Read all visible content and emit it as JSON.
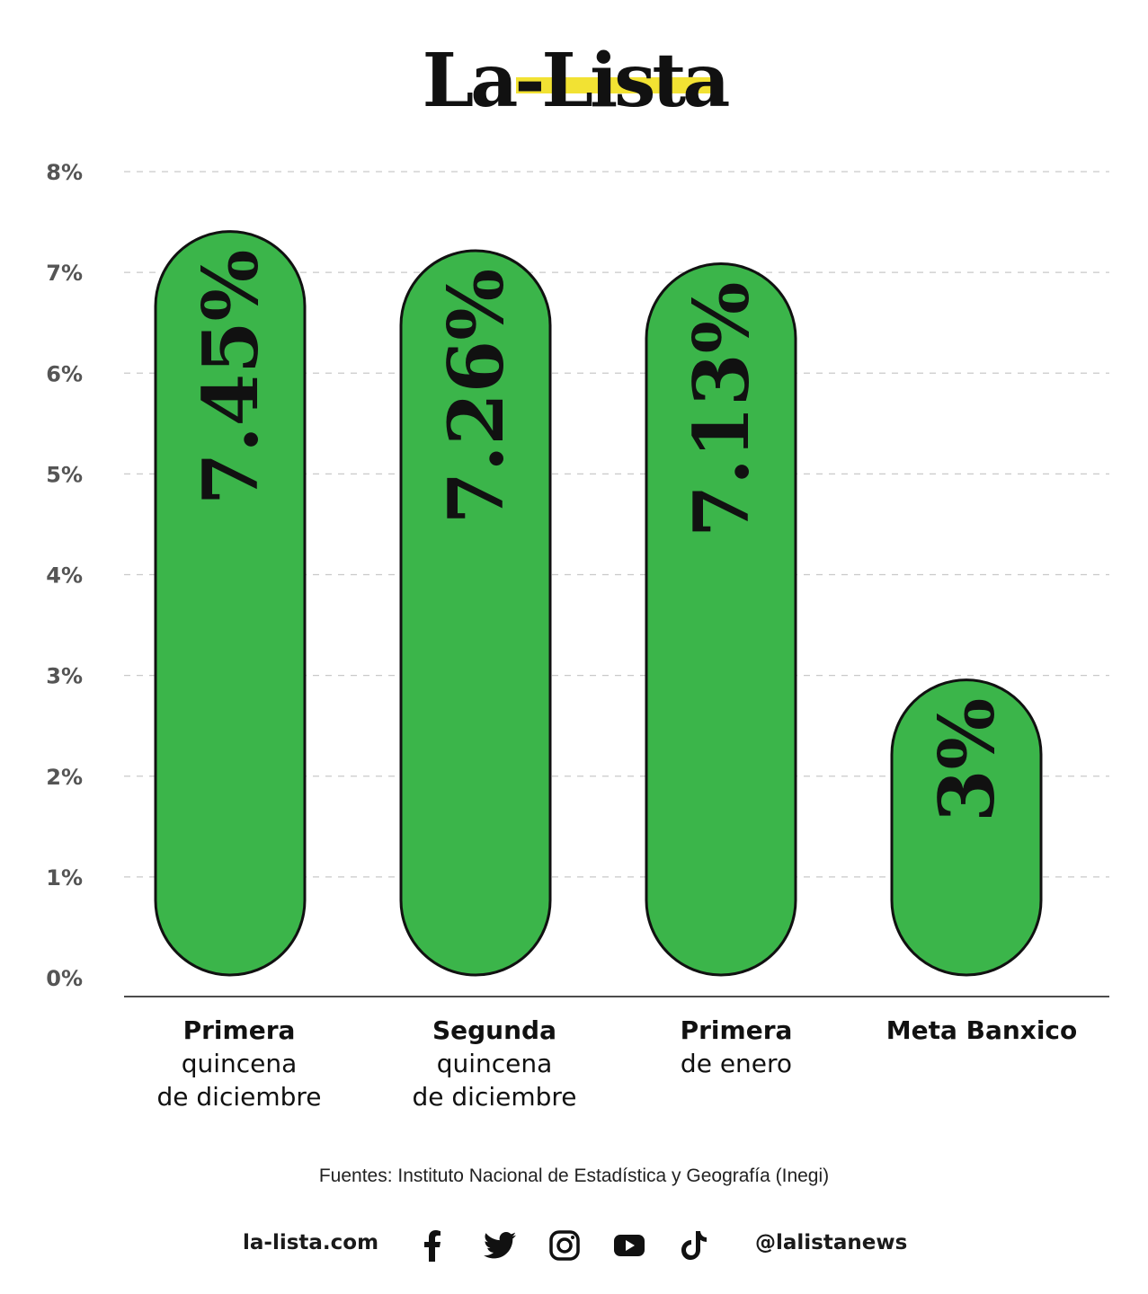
{
  "brand": {
    "logo_text": "La-Lista",
    "highlight_color": "#f2e233"
  },
  "chart_data": {
    "type": "bar",
    "categories": [
      [
        "Primera",
        "quincena",
        "de diciembre"
      ],
      [
        "Segunda",
        "quincena",
        "de diciembre"
      ],
      [
        "Primera",
        "de enero"
      ],
      [
        "Meta Banxico"
      ]
    ],
    "values": [
      7.45,
      7.26,
      7.13,
      3
    ],
    "value_labels": [
      "7.45%",
      "7.26%",
      "7.13%",
      "3%"
    ],
    "ylim": [
      0,
      8
    ],
    "yticks": [
      "0%",
      "1%",
      "2%",
      "3%",
      "4%",
      "5%",
      "6%",
      "7%",
      "8%"
    ],
    "grid": true,
    "bar_color": "#3bb54a",
    "outline_color": "#111111"
  },
  "footer": {
    "source": "Fuentes: Instituto Nacional de Estadística y Geografía (Inegi)",
    "site": "la-lista.com",
    "handle": "@lalistanews",
    "icons": [
      "facebook-icon",
      "twitter-icon",
      "instagram-icon",
      "youtube-icon",
      "tiktok-icon"
    ]
  }
}
